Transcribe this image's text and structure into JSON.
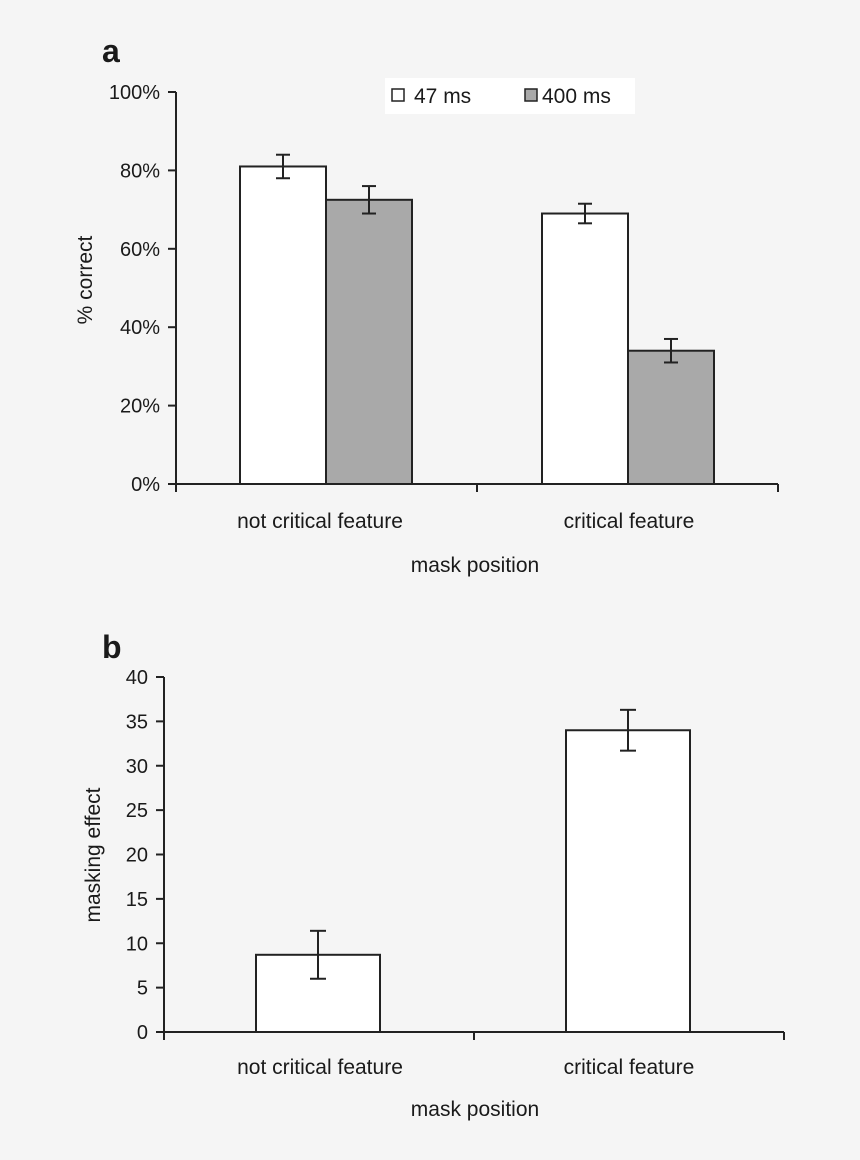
{
  "colors": {
    "background": "#f5f5f5",
    "white_bar": "#ffffff",
    "grey_bar": "#a9a9a9",
    "stroke": "#222222",
    "legend_bg": "#ffffff"
  },
  "chart_data": [
    {
      "panel": "a",
      "type": "bar",
      "title": "",
      "xlabel": "mask position",
      "ylabel": "% correct",
      "ylim": [
        0,
        100
      ],
      "yticks": [
        0,
        20,
        40,
        60,
        80,
        100
      ],
      "ytick_labels": [
        "0%",
        "20%",
        "40%",
        "60%",
        "80%",
        "100%"
      ],
      "categories": [
        "not critical feature",
        "critical feature"
      ],
      "legend_position": "top",
      "series": [
        {
          "name": "47 ms",
          "color": "#ffffff",
          "values": [
            81,
            69
          ],
          "errors": [
            3,
            2.5
          ]
        },
        {
          "name": "400 ms",
          "color": "#a9a9a9",
          "values": [
            72.5,
            34
          ],
          "errors": [
            3.5,
            3
          ]
        }
      ]
    },
    {
      "panel": "b",
      "type": "bar",
      "title": "",
      "xlabel": "mask position",
      "ylabel": "masking effect",
      "ylim": [
        0,
        40
      ],
      "yticks": [
        0,
        5,
        10,
        15,
        20,
        25,
        30,
        35,
        40
      ],
      "ytick_labels": [
        "0",
        "5",
        "10",
        "15",
        "20",
        "25",
        "30",
        "35",
        "40"
      ],
      "categories": [
        "not critical feature",
        "critical feature"
      ],
      "series": [
        {
          "name": "masking effect",
          "color": "#ffffff",
          "values": [
            8.7,
            34
          ],
          "errors": [
            2.7,
            2.3
          ]
        }
      ]
    }
  ]
}
